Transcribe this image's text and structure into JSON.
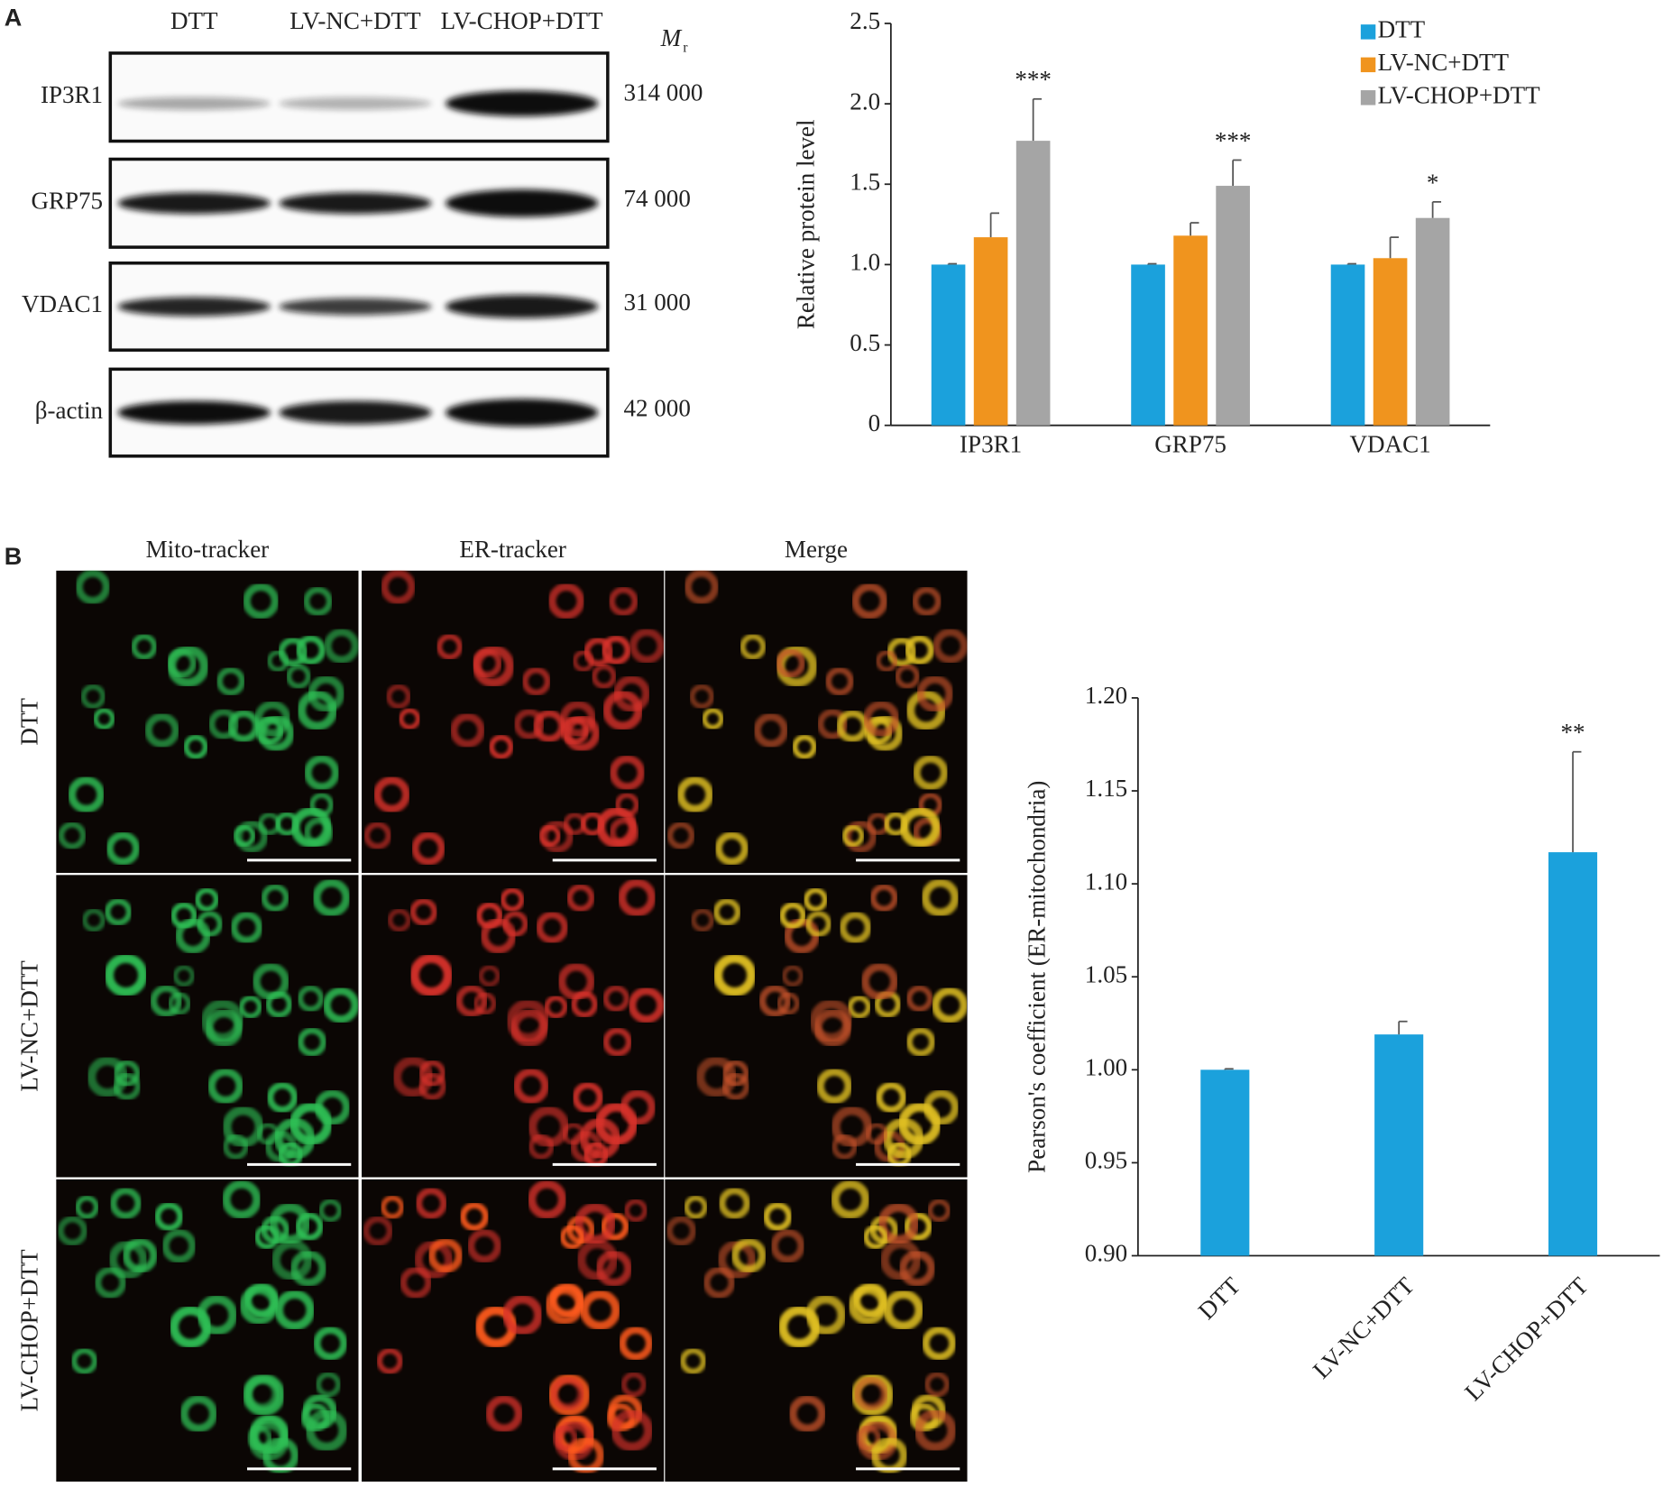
{
  "panel_a": {
    "label": "A",
    "lanes": [
      "DTT",
      "LV-NC+DTT",
      "LV-CHOP+DTT"
    ],
    "mr_label": "M",
    "mr_sub": "r",
    "rows": [
      {
        "protein": "IP3R1",
        "mr": "314 000"
      },
      {
        "protein": "GRP75",
        "mr": "74 000"
      },
      {
        "protein": "VDAC1",
        "mr": "31 000"
      },
      {
        "protein": "β-actin",
        "mr": "42 000"
      }
    ]
  },
  "panel_b": {
    "label": "B",
    "columns": [
      "Mito-tracker",
      "ER-tracker",
      "Merge"
    ],
    "rows": [
      "DTT",
      "LV-NC+DTT",
      "LV-CHOP+DTT"
    ]
  },
  "chart_data": [
    {
      "type": "bar",
      "y_label": "Relative protein level",
      "categories": [
        "IP3R1",
        "GRP75",
        "VDAC1"
      ],
      "series": [
        {
          "name": "DTT",
          "color": "#1ba1dc",
          "values": [
            1.0,
            1.0,
            1.0
          ],
          "errors": [
            0.005,
            0.005,
            0.005
          ]
        },
        {
          "name": "LV-NC+DTT",
          "color": "#f0941e",
          "values": [
            1.17,
            1.18,
            1.04
          ],
          "errors": [
            0.15,
            0.08,
            0.13
          ]
        },
        {
          "name": "LV-CHOP+DTT",
          "color": "#a5a5a5",
          "values": [
            1.77,
            1.49,
            1.29
          ],
          "errors": [
            0.26,
            0.16,
            0.1
          ],
          "annotations": [
            "***",
            "***",
            "*"
          ]
        }
      ],
      "ylim": [
        0,
        2.5
      ],
      "yticks": [
        0,
        0.5,
        {
          "value": 1,
          "label": "1.0"
        },
        1.5,
        {
          "value": 2,
          "label": "2.0"
        },
        2.5
      ],
      "legend": "top-right"
    },
    {
      "type": "bar",
      "y_label": "Pearson's coefficient (ER-mitochondria)",
      "categories": [
        "DTT",
        "LV-NC+DTT",
        "LV-CHOP+DTT"
      ],
      "values": [
        1.0,
        1.019,
        1.117
      ],
      "errors": [
        0.0005,
        0.007,
        0.054
      ],
      "annotations": [
        null,
        null,
        "**"
      ],
      "color": "#1ba1dc",
      "ylim": [
        0.9,
        1.2
      ],
      "yticks": [
        {
          "value": 0.9,
          "label": "0.90"
        },
        {
          "value": 0.95,
          "label": "0.95"
        },
        {
          "value": 1,
          "label": "1.00"
        },
        {
          "value": 1.05,
          "label": "1.05"
        },
        {
          "value": 1.1,
          "label": "1.10"
        },
        {
          "value": 1.15,
          "label": "1.15"
        },
        {
          "value": 1.2,
          "label": "1.20"
        }
      ]
    }
  ]
}
